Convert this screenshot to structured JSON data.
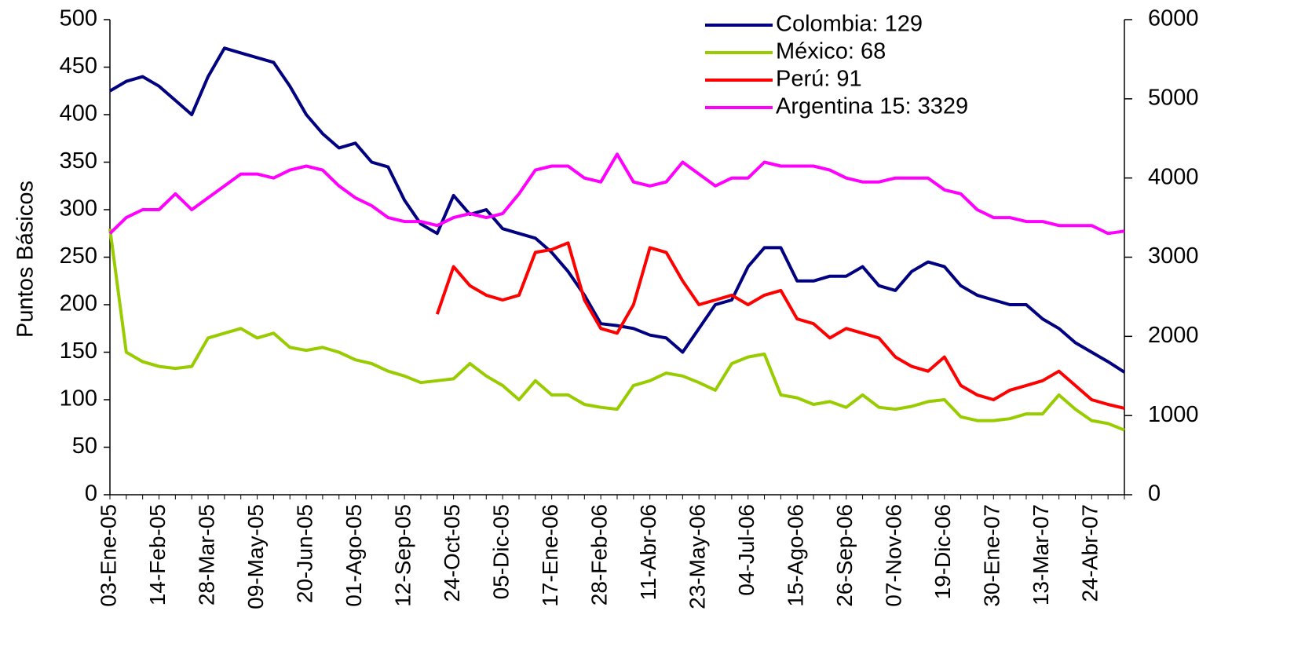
{
  "chart_data": {
    "type": "line",
    "y_label": "Puntos Básicos",
    "categories": [
      "03-Ene-05",
      null,
      null,
      "14-Feb-05",
      null,
      null,
      "28-Mar-05",
      null,
      null,
      "09-May-05",
      null,
      null,
      "20-Jun-05",
      null,
      null,
      "01-Ago-05",
      null,
      null,
      "12-Sep-05",
      null,
      null,
      "24-Oct-05",
      null,
      null,
      "05-Dic-05",
      null,
      null,
      "17-Ene-06",
      null,
      null,
      "28-Feb-06",
      null,
      null,
      "11-Abr-06",
      null,
      null,
      "23-May-06",
      null,
      null,
      "04-Jul-06",
      null,
      null,
      "15-Ago-06",
      null,
      null,
      "26-Sep-06",
      null,
      null,
      "07-Nov-06",
      null,
      null,
      "19-Dic-06",
      null,
      null,
      "30-Ene-07",
      null,
      null,
      "13-Mar-07",
      null,
      null,
      "24-Abr-07",
      null,
      null
    ],
    "series": [
      {
        "name": "Colombia: 129",
        "color": "#000080",
        "values": [
          425,
          435,
          440,
          430,
          415,
          400,
          440,
          470,
          465,
          460,
          455,
          430,
          400,
          380,
          365,
          370,
          350,
          345,
          310,
          285,
          275,
          315,
          295,
          300,
          280,
          275,
          270,
          255,
          235,
          210,
          180,
          178,
          175,
          168,
          165,
          150,
          175,
          200,
          205,
          240,
          260,
          260,
          225,
          225,
          230,
          230,
          240,
          220,
          215,
          235,
          245,
          240,
          220,
          210,
          205,
          200,
          200,
          185,
          175,
          160,
          150,
          140,
          129
        ]
      },
      {
        "name": "México: 68",
        "color": "#99cc00",
        "values": [
          280,
          150,
          140,
          135,
          133,
          135,
          165,
          170,
          175,
          165,
          170,
          155,
          152,
          155,
          150,
          142,
          138,
          130,
          125,
          118,
          120,
          122,
          138,
          125,
          115,
          100,
          120,
          105,
          105,
          95,
          92,
          90,
          115,
          120,
          128,
          125,
          118,
          110,
          138,
          145,
          148,
          105,
          102,
          95,
          98,
          92,
          105,
          92,
          90,
          93,
          98,
          100,
          82,
          78,
          78,
          80,
          85,
          85,
          105,
          90,
          78,
          75,
          68
        ]
      },
      {
        "name": "Perú: 91",
        "color": "#ff0000",
        "values": [
          null,
          null,
          null,
          null,
          null,
          null,
          null,
          null,
          null,
          null,
          null,
          null,
          null,
          null,
          null,
          null,
          null,
          null,
          null,
          null,
          190,
          240,
          220,
          210,
          205,
          210,
          255,
          258,
          265,
          205,
          175,
          170,
          200,
          260,
          255,
          225,
          200,
          205,
          210,
          200,
          210,
          215,
          185,
          180,
          165,
          175,
          170,
          165,
          145,
          135,
          130,
          145,
          115,
          105,
          100,
          110,
          115,
          120,
          130,
          115,
          100,
          95,
          91
        ]
      },
      {
        "name": "Argentina 15: 3329",
        "color": "#ff00ff",
        "axis": "y2",
        "values": [
          3300,
          3500,
          3600,
          3600,
          3800,
          3600,
          3750,
          3900,
          4050,
          4050,
          4000,
          4100,
          4150,
          4100,
          3900,
          3750,
          3650,
          3500,
          3450,
          3450,
          3400,
          3500,
          3550,
          3500,
          3550,
          3800,
          4100,
          4150,
          4150,
          4000,
          3950,
          4300,
          3950,
          3900,
          3950,
          4200,
          4050,
          3900,
          4000,
          4000,
          4200,
          4150,
          4150,
          4150,
          4100,
          4000,
          3950,
          3950,
          4000,
          4000,
          4000,
          3850,
          3800,
          3600,
          3500,
          3500,
          3450,
          3450,
          3400,
          3400,
          3400,
          3300,
          3329
        ]
      }
    ],
    "ylim": [
      0,
      500
    ],
    "yticks": [
      0,
      50,
      100,
      150,
      200,
      250,
      300,
      350,
      400,
      450,
      500
    ],
    "y2lim": [
      0,
      6000
    ],
    "y2ticks": [
      0,
      1000,
      2000,
      3000,
      4000,
      5000,
      6000
    ],
    "grid": false,
    "legend": "top-right"
  }
}
